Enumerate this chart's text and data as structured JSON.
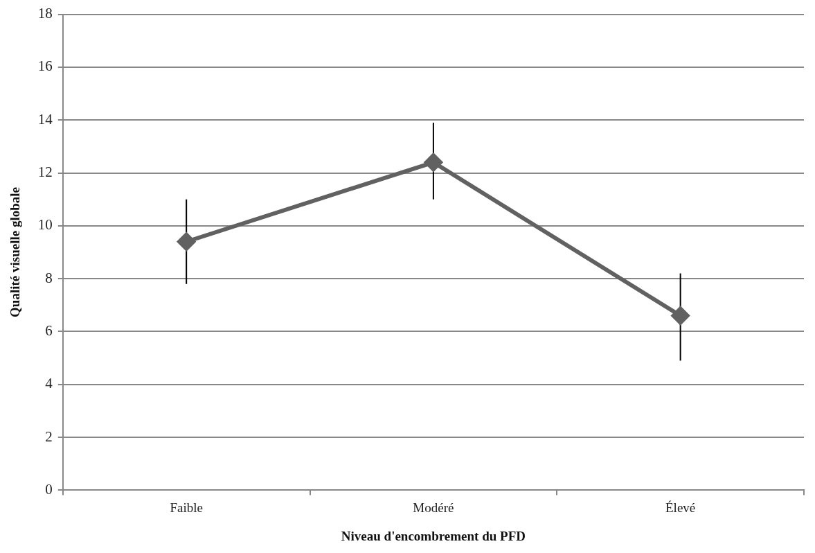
{
  "chart_data": {
    "type": "line",
    "xlabel": "Niveau d'encombrement du PFD",
    "ylabel": "Qualité visuelle globale",
    "categories": [
      "Faible",
      "Modéré",
      "Élevé"
    ],
    "series": [
      {
        "color": "#616161",
        "values": [
          9.4,
          12.4,
          6.6
        ],
        "errors": [
          [
            7.8,
            11.0
          ],
          [
            11.0,
            13.9
          ],
          [
            4.9,
            8.2
          ]
        ]
      }
    ],
    "ylim": [
      0,
      18
    ],
    "yticks": [
      0,
      2,
      4,
      6,
      8,
      10,
      12,
      14,
      16,
      18
    ],
    "grid": "y",
    "legend": false,
    "marker": "diamond",
    "line_style": "solid"
  }
}
